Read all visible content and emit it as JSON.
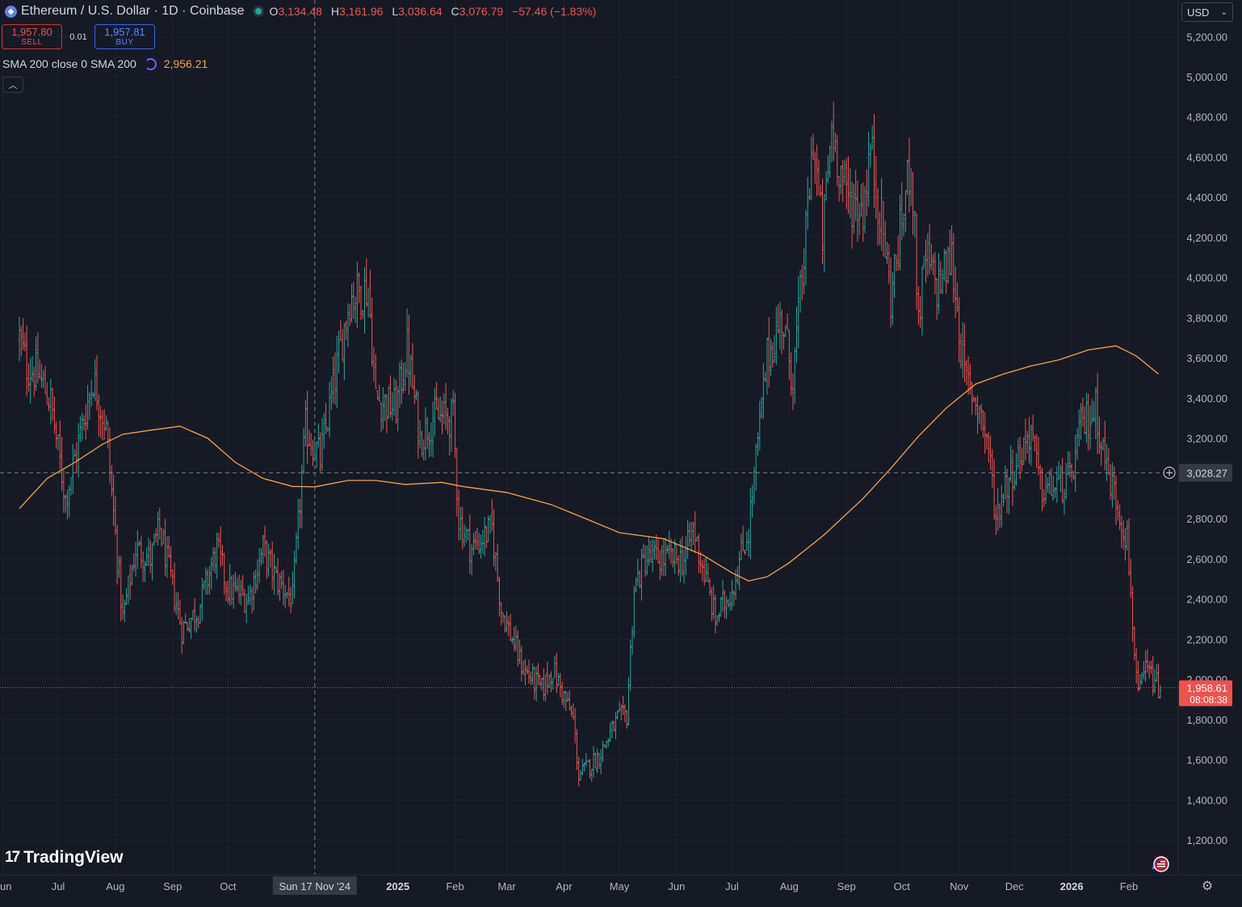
{
  "header": {
    "title": "Ethereum / U.S. Dollar · 1D · Coinbase",
    "ohlc": [
      {
        "label": "O",
        "value": "3,134.48"
      },
      {
        "label": "H",
        "value": "3,161.96"
      },
      {
        "label": "L",
        "value": "3,036.64"
      },
      {
        "label": "C",
        "value": "3,076.79"
      }
    ],
    "change": "−57.46 (−1.83%)"
  },
  "trade": {
    "sell_price": "1,957.80",
    "sell_label": "SELL",
    "spread": "0.01",
    "buy_price": "1,957.81",
    "buy_label": "BUY"
  },
  "indicator": {
    "label": "SMA 200 close 0 SMA 200",
    "value": "2,956.21",
    "color": "#f5a04b"
  },
  "currency": "USD",
  "logo_text": "TradingView",
  "crosshair": {
    "date_label": "Sun 17 Nov '24",
    "price_label": "3,028.27",
    "price": 3028.27
  },
  "last_price": {
    "price": 1958.61,
    "label": "1,958.61",
    "countdown": "08:08:38"
  },
  "colors": {
    "background": "#161a25",
    "up": "#26a69a",
    "down": "#ef5350",
    "sma": "#f5a04b",
    "grid": "#1f2330"
  },
  "chart_data": {
    "type": "ohlc",
    "title": "",
    "ylim": [
      1000,
      5300
    ],
    "grid": true,
    "y_ticks": [
      {
        "value": 1200,
        "label": "1,200.00"
      },
      {
        "value": 1400,
        "label": "1,400.00"
      },
      {
        "value": 1600,
        "label": "1,600.00"
      },
      {
        "value": 1800,
        "label": "1,800.00"
      },
      {
        "value": 2000,
        "label": "2,000.00"
      },
      {
        "value": 2200,
        "label": "2,200.00"
      },
      {
        "value": 2400,
        "label": "2,400.00"
      },
      {
        "value": 2600,
        "label": "2,600.00"
      },
      {
        "value": 2800,
        "label": "2,800.00"
      },
      {
        "value": 3200,
        "label": "3,200.00"
      },
      {
        "value": 3400,
        "label": "3,400.00"
      },
      {
        "value": 3600,
        "label": "3,600.00"
      },
      {
        "value": 3800,
        "label": "3,800.00"
      },
      {
        "value": 4000,
        "label": "4,000.00"
      },
      {
        "value": 4200,
        "label": "4,200.00"
      },
      {
        "value": 4400,
        "label": "4,400.00"
      },
      {
        "value": 4600,
        "label": "4,600.00"
      },
      {
        "value": 4800,
        "label": "4,800.00"
      },
      {
        "value": 5000,
        "label": "5,000.00"
      },
      {
        "value": 5200,
        "label": "5,200.00"
      }
    ],
    "x_ticks": [
      {
        "date": "2024-06-01",
        "label": "Jun",
        "partial": "un",
        "bold": false
      },
      {
        "date": "2024-07-01",
        "label": "Jul",
        "bold": false
      },
      {
        "date": "2024-08-01",
        "label": "Aug",
        "bold": false
      },
      {
        "date": "2024-09-01",
        "label": "Sep",
        "bold": false
      },
      {
        "date": "2024-10-01",
        "label": "Oct",
        "bold": false
      },
      {
        "date": "2025-01-01",
        "label": "2025",
        "bold": true
      },
      {
        "date": "2025-02-01",
        "label": "Feb",
        "bold": false
      },
      {
        "date": "2025-03-01",
        "label": "Mar",
        "bold": false
      },
      {
        "date": "2025-04-01",
        "label": "Apr",
        "bold": false
      },
      {
        "date": "2025-05-01",
        "label": "May",
        "bold": false
      },
      {
        "date": "2025-06-01",
        "label": "Jun",
        "bold": false
      },
      {
        "date": "2025-07-01",
        "label": "Jul",
        "bold": false
      },
      {
        "date": "2025-08-01",
        "label": "Aug",
        "bold": false
      },
      {
        "date": "2025-09-01",
        "label": "Sep",
        "bold": false
      },
      {
        "date": "2025-10-01",
        "label": "Oct",
        "bold": false
      },
      {
        "date": "2025-11-01",
        "label": "Nov",
        "bold": false
      },
      {
        "date": "2025-12-01",
        "label": "Dec",
        "bold": false
      },
      {
        "date": "2026-01-01",
        "label": "2026",
        "bold": true
      },
      {
        "date": "2026-02-01",
        "label": "Feb",
        "bold": false
      }
    ],
    "x_range": [
      "2024-06-10",
      "2026-02-18"
    ],
    "crosshair_date": "2024-11-17",
    "price_anchors": [
      [
        "2024-06-10",
        3700
      ],
      [
        "2024-06-14",
        3560
      ],
      [
        "2024-06-20",
        3520
      ],
      [
        "2024-06-27",
        3380
      ],
      [
        "2024-07-05",
        2900
      ],
      [
        "2024-07-10",
        3100
      ],
      [
        "2024-07-20",
        3500
      ],
      [
        "2024-07-27",
        3250
      ],
      [
        "2024-08-05",
        2300
      ],
      [
        "2024-08-12",
        2650
      ],
      [
        "2024-08-20",
        2600
      ],
      [
        "2024-08-25",
        2750
      ],
      [
        "2024-09-06",
        2250
      ],
      [
        "2024-09-15",
        2350
      ],
      [
        "2024-09-25",
        2650
      ],
      [
        "2024-10-01",
        2450
      ],
      [
        "2024-10-12",
        2400
      ],
      [
        "2024-10-20",
        2650
      ],
      [
        "2024-10-27",
        2500
      ],
      [
        "2024-11-05",
        2400
      ],
      [
        "2024-11-12",
        3250
      ],
      [
        "2024-11-20",
        3100
      ],
      [
        "2024-12-06",
        3900
      ],
      [
        "2024-12-16",
        3950
      ],
      [
        "2024-12-20",
        3400
      ],
      [
        "2024-12-31",
        3350
      ],
      [
        "2025-01-06",
        3650
      ],
      [
        "2025-01-13",
        3200
      ],
      [
        "2025-01-20",
        3300
      ],
      [
        "2025-01-31",
        3300
      ],
      [
        "2025-02-03",
        2800
      ],
      [
        "2025-02-10",
        2650
      ],
      [
        "2025-02-21",
        2750
      ],
      [
        "2025-02-26",
        2350
      ],
      [
        "2025-03-10",
        2050
      ],
      [
        "2025-03-20",
        1950
      ],
      [
        "2025-03-26",
        2050
      ],
      [
        "2025-04-06",
        1800
      ],
      [
        "2025-04-09",
        1520
      ],
      [
        "2025-04-20",
        1620
      ],
      [
        "2025-04-30",
        1800
      ],
      [
        "2025-05-05",
        1820
      ],
      [
        "2025-05-09",
        2450
      ],
      [
        "2025-05-15",
        2600
      ],
      [
        "2025-05-25",
        2600
      ],
      [
        "2025-06-05",
        2600
      ],
      [
        "2025-06-10",
        2750
      ],
      [
        "2025-06-22",
        2300
      ],
      [
        "2025-07-01",
        2450
      ],
      [
        "2025-07-10",
        2750
      ],
      [
        "2025-07-20",
        3600
      ],
      [
        "2025-07-28",
        3800
      ],
      [
        "2025-08-03",
        3500
      ],
      [
        "2025-08-10",
        4200
      ],
      [
        "2025-08-14",
        4700
      ],
      [
        "2025-08-19",
        4200
      ],
      [
        "2025-08-24",
        4750
      ],
      [
        "2025-09-01",
        4400
      ],
      [
        "2025-09-10",
        4350
      ],
      [
        "2025-09-14",
        4650
      ],
      [
        "2025-09-22",
        4150
      ],
      [
        "2025-09-25",
        3900
      ],
      [
        "2025-10-06",
        4600
      ],
      [
        "2025-10-10",
        3800
      ],
      [
        "2025-10-14",
        4100
      ],
      [
        "2025-10-20",
        3950
      ],
      [
        "2025-10-28",
        4100
      ],
      [
        "2025-11-04",
        3500
      ],
      [
        "2025-11-07",
        3450
      ],
      [
        "2025-11-12",
        3350
      ],
      [
        "2025-11-17",
        3150
      ],
      [
        "2025-11-21",
        2800
      ],
      [
        "2025-11-25",
        2950
      ],
      [
        "2025-12-03",
        3100
      ],
      [
        "2025-12-10",
        3250
      ],
      [
        "2025-12-15",
        2950
      ],
      [
        "2025-12-20",
        2950
      ],
      [
        "2025-12-31",
        2980
      ],
      [
        "2026-01-06",
        3250
      ],
      [
        "2026-01-14",
        3350
      ],
      [
        "2026-01-20",
        3050
      ],
      [
        "2026-01-25",
        2900
      ],
      [
        "2026-01-31",
        2700
      ],
      [
        "2026-02-04",
        2150
      ],
      [
        "2026-02-06",
        1900
      ],
      [
        "2026-02-10",
        2050
      ],
      [
        "2026-02-14",
        2000
      ],
      [
        "2026-02-17",
        1958
      ]
    ],
    "series": [
      {
        "name": "SMA 200",
        "points": [
          [
            "2024-06-10",
            2850
          ],
          [
            "2024-06-25",
            3000
          ],
          [
            "2024-07-10",
            3080
          ],
          [
            "2024-07-25",
            3170
          ],
          [
            "2024-08-05",
            3220
          ],
          [
            "2024-08-20",
            3240
          ],
          [
            "2024-09-05",
            3260
          ],
          [
            "2024-09-20",
            3200
          ],
          [
            "2024-10-05",
            3080
          ],
          [
            "2024-10-20",
            3000
          ],
          [
            "2024-11-05",
            2960
          ],
          [
            "2024-11-17",
            2958
          ],
          [
            "2024-12-05",
            2990
          ],
          [
            "2024-12-20",
            2990
          ],
          [
            "2025-01-05",
            2970
          ],
          [
            "2025-01-25",
            2980
          ],
          [
            "2025-02-05",
            2960
          ],
          [
            "2025-03-01",
            2930
          ],
          [
            "2025-03-25",
            2870
          ],
          [
            "2025-04-10",
            2810
          ],
          [
            "2025-05-01",
            2730
          ],
          [
            "2025-05-25",
            2700
          ],
          [
            "2025-06-15",
            2620
          ],
          [
            "2025-07-01",
            2530
          ],
          [
            "2025-07-10",
            2490
          ],
          [
            "2025-07-20",
            2510
          ],
          [
            "2025-08-01",
            2580
          ],
          [
            "2025-08-20",
            2720
          ],
          [
            "2025-09-10",
            2900
          ],
          [
            "2025-09-25",
            3050
          ],
          [
            "2025-10-10",
            3210
          ],
          [
            "2025-10-25",
            3350
          ],
          [
            "2025-11-10",
            3470
          ],
          [
            "2025-11-25",
            3520
          ],
          [
            "2025-12-10",
            3560
          ],
          [
            "2025-12-25",
            3590
          ],
          [
            "2026-01-10",
            3640
          ],
          [
            "2026-01-25",
            3660
          ],
          [
            "2026-02-05",
            3610
          ],
          [
            "2026-02-17",
            3520
          ]
        ]
      }
    ]
  }
}
